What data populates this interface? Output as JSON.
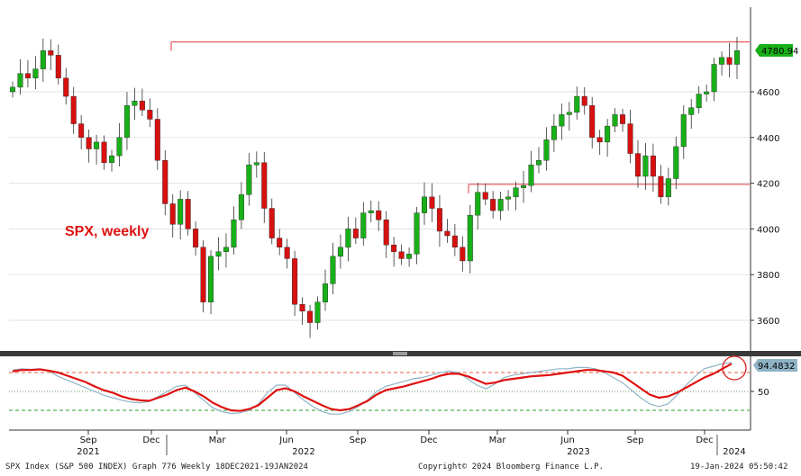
{
  "chart_data": [
    {
      "type": "candlestick",
      "annotation": "SPX, weekly",
      "ylim": [
        3490,
        4900
      ],
      "y_ticks": [
        3600,
        3800,
        4000,
        4200,
        4400,
        4600
      ],
      "last_value": 4780.94,
      "last_value_label": "4780.94",
      "resistance_levels": [
        4818,
        4195
      ],
      "weekly_closes": [
        4620,
        4680,
        4660,
        4700,
        4780,
        4760,
        4660,
        4580,
        4460,
        4400,
        4350,
        4380,
        4290,
        4320,
        4400,
        4540,
        4560,
        4520,
        4480,
        4300,
        4110,
        4020,
        4130,
        4000,
        3920,
        3680,
        3880,
        3900,
        3920,
        4040,
        4150,
        4280,
        4290,
        4090,
        3960,
        3920,
        3870,
        3670,
        3640,
        3590,
        3680,
        3760,
        3880,
        3920,
        4000,
        3960,
        4070,
        4080,
        4040,
        3930,
        3900,
        3870,
        3890,
        4070,
        4140,
        4090,
        3990,
        3970,
        3920,
        3860,
        4060,
        4160,
        4130,
        4080,
        4130,
        4140,
        4180,
        4190,
        4280,
        4300,
        4390,
        4450,
        4500,
        4510,
        4580,
        4540,
        4400,
        4380,
        4450,
        4500,
        4460,
        4330,
        4230,
        4320,
        4230,
        4140,
        4220,
        4360,
        4500,
        4530,
        4590,
        4600,
        4720,
        4750,
        4720,
        4780
      ],
      "colors": {
        "up": "#18b018",
        "down": "#d81010",
        "level_line": "#e03a3a",
        "last_value_tag": "#18b018"
      }
    },
    {
      "type": "line",
      "indicator_value_label": "94.4832",
      "y_ticks": [
        50
      ],
      "reference_levels": [
        80,
        50,
        20
      ],
      "series": [
        {
          "color": "#e01010",
          "values": [
            82,
            84,
            84,
            85,
            83,
            80,
            75,
            70,
            65,
            58,
            52,
            48,
            42,
            38,
            36,
            35,
            40,
            45,
            52,
            56,
            50,
            42,
            32,
            25,
            20,
            19,
            22,
            28,
            40,
            52,
            55,
            50,
            42,
            35,
            28,
            22,
            20,
            22,
            28,
            35,
            45,
            52,
            55,
            58,
            62,
            66,
            70,
            75,
            78,
            78,
            74,
            68,
            62,
            64,
            68,
            70,
            72,
            74,
            75,
            76,
            78,
            80,
            82,
            84,
            84,
            82,
            80,
            75,
            65,
            55,
            45,
            40,
            42,
            48,
            56,
            64,
            72,
            78,
            86,
            94
          ]
        },
        {
          "color": "#8fb3c6",
          "values": [
            84,
            86,
            85,
            86,
            82,
            74,
            68,
            62,
            56,
            50,
            44,
            40,
            36,
            33,
            32,
            34,
            42,
            50,
            58,
            60,
            48,
            36,
            24,
            18,
            15,
            16,
            20,
            30,
            48,
            60,
            60,
            48,
            36,
            26,
            18,
            14,
            14,
            18,
            26,
            36,
            50,
            58,
            62,
            66,
            70,
            72,
            76,
            80,
            82,
            80,
            70,
            60,
            54,
            62,
            72,
            76,
            78,
            80,
            82,
            84,
            86,
            86,
            88,
            88,
            86,
            80,
            72,
            64,
            52,
            40,
            30,
            26,
            30,
            44,
            60,
            74,
            86,
            90,
            94,
            96
          ]
        }
      ]
    }
  ],
  "x_axis": {
    "months": [
      "Sep",
      "Dec",
      "Mar",
      "Jun",
      "Sep",
      "Dec",
      "Mar",
      "Jun",
      "Sep",
      "Dec"
    ],
    "years": [
      "2021",
      "2022",
      "2023",
      "2024"
    ]
  },
  "footer": {
    "left": "SPX Index (S&P 500 INDEX) Graph 776  Weekly 18DEC2021-19JAN2024",
    "center": "Copyright© 2024 Bloomberg Finance L.P.",
    "right": "19-Jan-2024 05:50:42"
  }
}
